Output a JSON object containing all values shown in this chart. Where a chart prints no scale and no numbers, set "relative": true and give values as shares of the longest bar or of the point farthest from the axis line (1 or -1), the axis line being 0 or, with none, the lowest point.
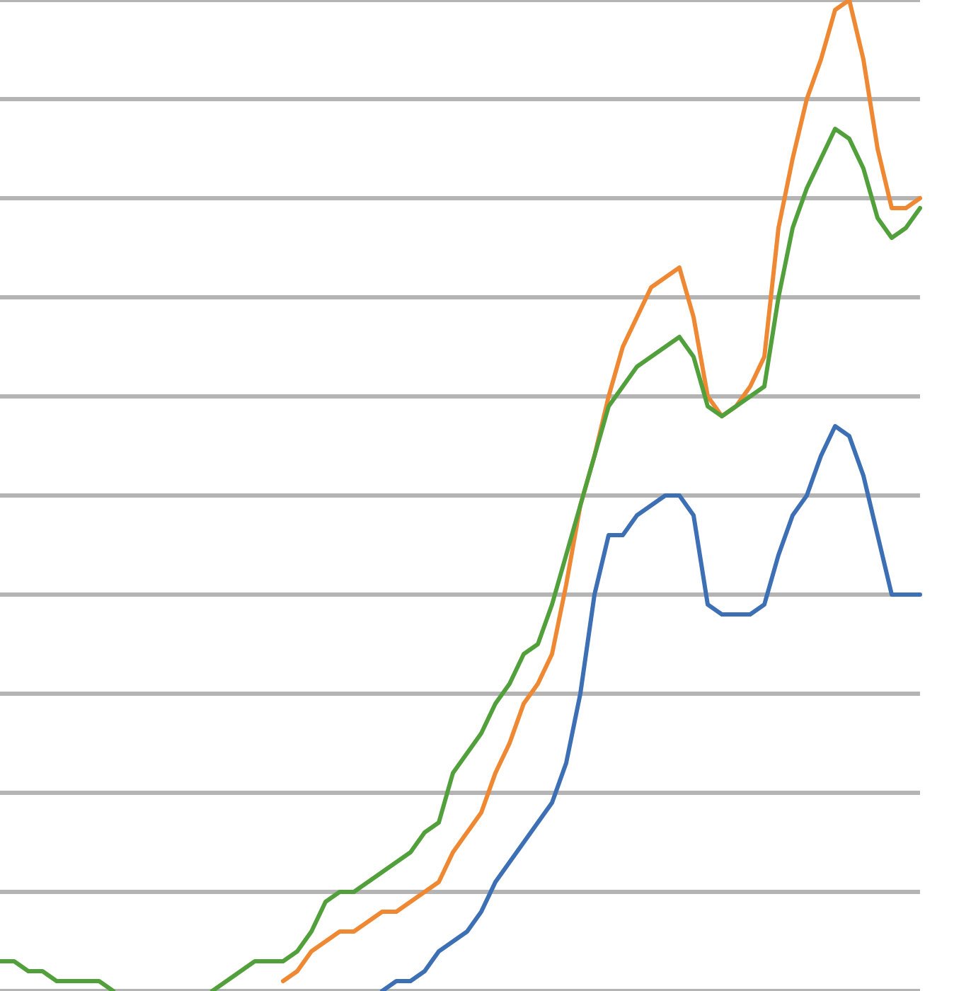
{
  "chart_data": {
    "type": "line",
    "relative": true,
    "grid": "y",
    "legend": false,
    "marker": "none",
    "line_style": "solid",
    "categories": [
      null,
      null,
      null,
      null,
      null,
      null,
      null,
      null,
      null,
      null,
      null,
      null,
      null,
      null,
      null,
      null,
      null,
      null,
      null,
      null,
      null,
      null,
      null,
      null,
      null,
      null,
      null,
      null,
      null,
      null,
      null,
      null,
      null,
      null,
      null,
      null,
      null,
      null,
      null,
      null,
      null,
      null,
      null,
      null,
      null,
      null,
      null,
      null,
      null,
      null,
      null,
      null,
      null,
      null,
      null,
      null,
      null,
      null,
      null,
      null,
      null,
      null,
      null,
      null,
      null,
      null
    ],
    "series": [
      {
        "color": "#52a03c",
        "values": [
          0.03,
          0.03,
          0.02,
          0.02,
          0.01,
          0.01,
          0.01,
          0.01,
          0.0,
          null,
          null,
          null,
          null,
          null,
          null,
          0.0,
          0.01,
          0.02,
          0.03,
          0.03,
          0.03,
          0.04,
          0.06,
          0.09,
          0.1,
          0.1,
          0.11,
          0.12,
          0.13,
          0.14,
          0.16,
          0.17,
          0.22,
          0.24,
          0.26,
          0.29,
          0.31,
          0.34,
          0.35,
          0.39,
          0.44,
          0.49,
          0.54,
          0.59,
          0.61,
          0.63,
          0.64,
          0.65,
          0.66,
          0.64,
          0.59,
          0.58,
          0.59,
          0.6,
          0.61,
          0.7,
          0.77,
          0.81,
          0.84,
          0.87,
          0.86,
          0.83,
          0.78,
          0.76,
          0.77,
          0.79
        ]
      },
      {
        "color": "#ee8833",
        "values": [
          null,
          null,
          null,
          null,
          null,
          null,
          null,
          null,
          null,
          null,
          null,
          null,
          null,
          null,
          null,
          null,
          null,
          null,
          null,
          null,
          0.01,
          0.02,
          0.04,
          0.05,
          0.06,
          0.06,
          0.07,
          0.08,
          0.08,
          0.09,
          0.1,
          0.11,
          0.14,
          0.16,
          0.18,
          0.22,
          0.25,
          0.29,
          0.31,
          0.34,
          0.41,
          0.49,
          0.54,
          0.6,
          0.65,
          0.68,
          0.71,
          0.72,
          0.73,
          0.68,
          0.6,
          0.58,
          0.59,
          0.61,
          0.64,
          0.77,
          0.84,
          0.9,
          0.94,
          0.99,
          1,
          0.94,
          0.85,
          0.79,
          0.79,
          0.8
        ]
      },
      {
        "color": "#3d6fb4",
        "values": [
          null,
          null,
          null,
          null,
          null,
          null,
          null,
          null,
          null,
          null,
          null,
          null,
          null,
          null,
          null,
          null,
          null,
          null,
          null,
          null,
          null,
          null,
          null,
          null,
          null,
          null,
          null,
          0.0,
          0.01,
          0.01,
          0.02,
          0.04,
          0.05,
          0.06,
          0.08,
          0.11,
          0.13,
          0.15,
          0.17,
          0.19,
          0.23,
          0.3,
          0.4,
          0.46,
          0.46,
          0.48,
          0.49,
          0.5,
          0.5,
          0.48,
          0.39,
          0.38,
          0.38,
          0.38,
          0.39,
          0.44,
          0.48,
          0.5,
          0.54,
          0.57,
          0.56,
          0.52,
          0.46,
          0.4,
          0.4,
          0.4
        ]
      }
    ]
  }
}
